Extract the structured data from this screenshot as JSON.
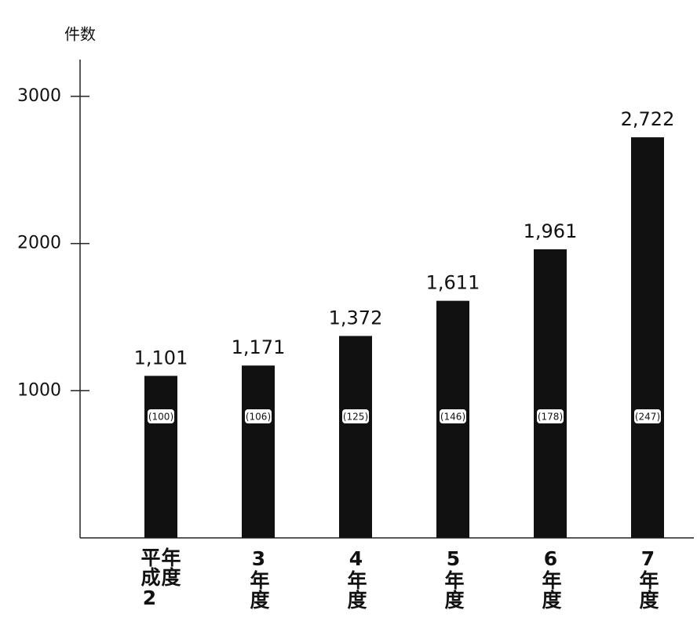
{
  "chart_data": {
    "type": "bar",
    "y_label": "件数",
    "categories": [
      "平成2年度",
      "3年度",
      "4年度",
      "5年度",
      "6年度",
      "7年度"
    ],
    "values": [
      1101,
      1171,
      1372,
      1611,
      1961,
      2722
    ],
    "value_labels": [
      "1,101",
      "1,171",
      "1,372",
      "1,611",
      "1,961",
      "2,722"
    ],
    "index_labels": [
      "(100)",
      "(106)",
      "(125)",
      "(146)",
      "(178)",
      "(247)"
    ],
    "color": "#111111",
    "ylim": [
      0,
      3250
    ],
    "yticks": [
      1000,
      2000,
      3000
    ],
    "grid": false
  }
}
